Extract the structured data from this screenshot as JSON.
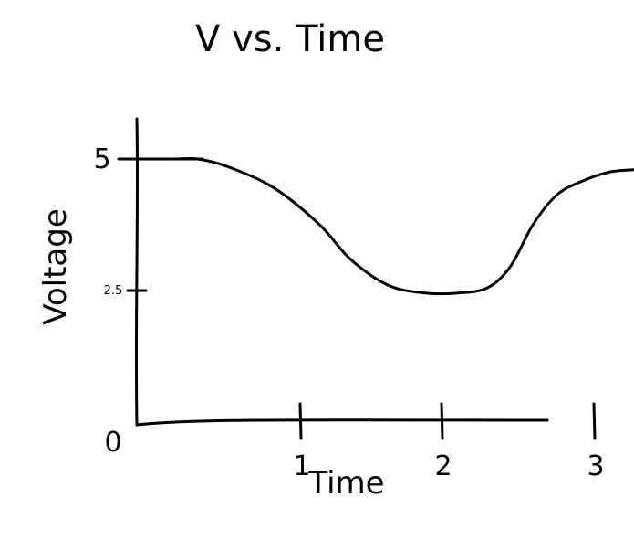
{
  "chart_data": {
    "type": "line",
    "title": "V vs. Time",
    "xlabel": "Time",
    "ylabel": "Voltage",
    "origin_label": "0",
    "x_ticks": [
      {
        "value": 1,
        "label": "1"
      },
      {
        "value": 2,
        "label": "2"
      },
      {
        "value": 3,
        "label": "3"
      }
    ],
    "y_ticks": [
      {
        "value": 2.5,
        "label": "2.5"
      },
      {
        "value": 5,
        "label": "5"
      }
    ],
    "xlim": [
      0,
      3.4
    ],
    "ylim": [
      0,
      5.7
    ],
    "grid": false,
    "series": [
      {
        "color": "#000000",
        "x": [
          -0.05,
          0.25,
          0.4,
          0.6,
          0.9,
          1.2,
          1.4,
          1.65,
          1.9,
          2.1,
          2.3,
          2.45,
          2.6,
          2.75,
          2.9,
          3.1,
          3.3,
          3.4
        ],
        "y": [
          5.0,
          5.0,
          5.0,
          4.85,
          4.45,
          3.75,
          3.1,
          2.6,
          2.45,
          2.45,
          2.55,
          2.95,
          3.75,
          4.3,
          4.55,
          4.75,
          4.8,
          4.8
        ]
      }
    ]
  }
}
